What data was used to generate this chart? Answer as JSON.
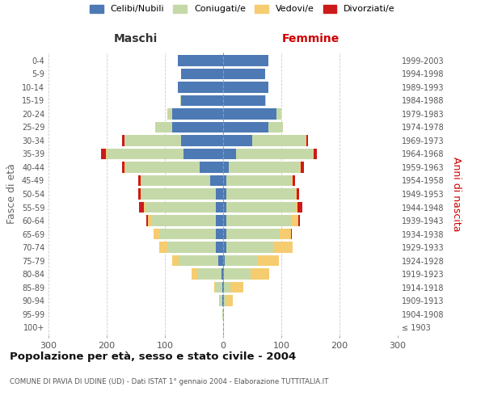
{
  "age_groups": [
    "100+",
    "95-99",
    "90-94",
    "85-89",
    "80-84",
    "75-79",
    "70-74",
    "65-69",
    "60-64",
    "55-59",
    "50-54",
    "45-49",
    "40-44",
    "35-39",
    "30-34",
    "25-29",
    "20-24",
    "15-19",
    "10-14",
    "5-9",
    "0-4"
  ],
  "birth_years": [
    "≤ 1903",
    "1904-1908",
    "1909-1913",
    "1914-1918",
    "1919-1923",
    "1924-1928",
    "1929-1933",
    "1934-1938",
    "1939-1943",
    "1944-1948",
    "1949-1953",
    "1954-1958",
    "1959-1963",
    "1964-1968",
    "1969-1973",
    "1974-1978",
    "1979-1983",
    "1984-1988",
    "1989-1993",
    "1994-1998",
    "1999-2003"
  ],
  "male": {
    "celibi": [
      0,
      0,
      1,
      2,
      3,
      8,
      13,
      12,
      12,
      12,
      12,
      22,
      40,
      68,
      72,
      88,
      87,
      72,
      78,
      72,
      78
    ],
    "coniugati": [
      0,
      1,
      5,
      10,
      42,
      68,
      83,
      98,
      112,
      122,
      128,
      118,
      128,
      132,
      97,
      28,
      8,
      1,
      0,
      0,
      0
    ],
    "vedovi": [
      0,
      0,
      1,
      3,
      9,
      12,
      14,
      9,
      5,
      2,
      1,
      1,
      1,
      2,
      1,
      1,
      1,
      0,
      0,
      0,
      0
    ],
    "divorziati": [
      0,
      0,
      0,
      0,
      0,
      0,
      0,
      0,
      3,
      9,
      5,
      5,
      5,
      8,
      3,
      0,
      0,
      0,
      0,
      0,
      0
    ]
  },
  "female": {
    "nubili": [
      0,
      0,
      1,
      1,
      2,
      3,
      5,
      5,
      5,
      5,
      5,
      5,
      10,
      22,
      50,
      78,
      92,
      72,
      78,
      72,
      78
    ],
    "coniugate": [
      0,
      0,
      5,
      12,
      45,
      55,
      82,
      92,
      112,
      118,
      118,
      112,
      122,
      132,
      92,
      25,
      8,
      1,
      0,
      0,
      0
    ],
    "vedove": [
      0,
      1,
      10,
      22,
      32,
      38,
      32,
      20,
      12,
      5,
      3,
      2,
      2,
      2,
      1,
      0,
      0,
      0,
      0,
      0,
      0
    ],
    "divorziate": [
      0,
      0,
      0,
      0,
      0,
      0,
      0,
      1,
      3,
      8,
      5,
      5,
      5,
      5,
      3,
      0,
      0,
      0,
      0,
      0,
      0
    ]
  },
  "colors": {
    "celibi": "#4d7ab5",
    "coniugati": "#c5d9a8",
    "vedovi": "#f5cc70",
    "divorziati": "#cc1a1a"
  },
  "title": "Popolazione per età, sesso e stato civile - 2004",
  "subtitle": "COMUNE DI PAVIA DI UDINE (UD) - Dati ISTAT 1° gennaio 2004 - Elaborazione TUTTITALIA.IT",
  "xlabel_left": "Maschi",
  "xlabel_right": "Femmine",
  "ylabel_left": "Fasce di età",
  "ylabel_right": "Anni di nascita",
  "xlim": 300,
  "xticks": [
    -300,
    -200,
    -100,
    0,
    100,
    200,
    300
  ],
  "xticklabels": [
    "300",
    "200",
    "100",
    "0",
    "100",
    "200",
    "300"
  ],
  "legend_labels": [
    "Celibi/Nubili",
    "Coniugati/e",
    "Vedovi/e",
    "Divorziati/e"
  ],
  "background_color": "#ffffff",
  "grid_color": "#cccccc"
}
